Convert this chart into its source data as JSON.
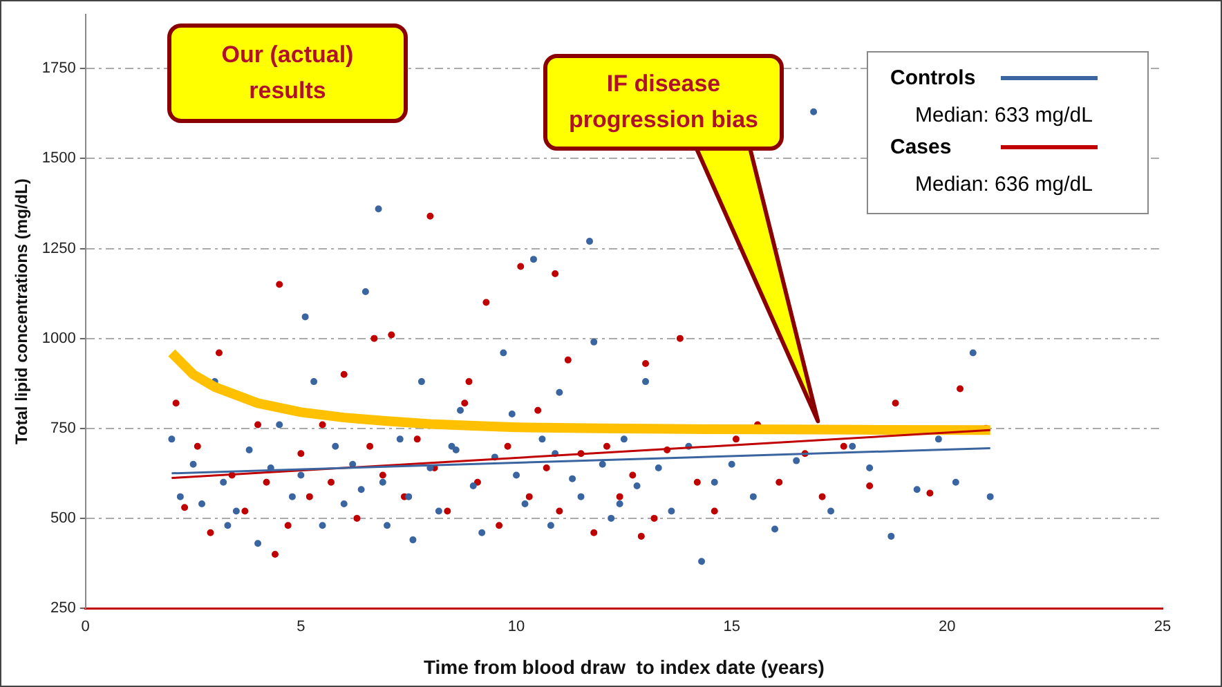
{
  "chart_data": {
    "type": "scatter",
    "xlabel": "Time from blood draw  to index date (years)",
    "ylabel": "Total lipid concentrations (mg/dL)",
    "xlim": [
      0,
      25
    ],
    "xticks": [
      0,
      5,
      10,
      15,
      20,
      25
    ],
    "ylim": [
      250,
      1900
    ],
    "yticks": [
      250,
      500,
      750,
      1000,
      1250,
      1500,
      1750
    ],
    "grid": "y",
    "legend": "top right",
    "marker": "circle",
    "series": [
      {
        "color": "#3a65a0",
        "x": [
          2.0,
          2.2,
          2.5,
          2.7,
          3.0,
          3.2,
          3.5,
          3.8,
          4.0,
          4.3,
          4.5,
          4.8,
          5.0,
          5.3,
          5.5,
          5.8,
          6.0,
          6.2,
          6.5,
          6.8,
          6.9,
          7.0,
          7.3,
          7.5,
          7.8,
          8.0,
          8.2,
          8.5,
          8.7,
          9.0,
          9.2,
          9.5,
          9.7,
          10.0,
          10.2,
          10.4,
          10.6,
          10.8,
          11.0,
          11.3,
          11.5,
          11.8,
          12.0,
          12.2,
          12.5,
          12.8,
          13.0,
          13.3,
          13.6,
          14.0,
          14.3,
          14.6,
          15.0,
          15.5,
          16.0,
          16.5,
          16.9,
          17.3,
          17.8,
          18.2,
          18.7,
          19.3,
          19.8,
          20.2,
          20.6,
          21.0,
          3.3,
          5.1,
          7.6,
          9.9,
          11.7,
          8.6,
          6.4,
          10.9,
          12.4
        ],
        "values": [
          720,
          560,
          650,
          540,
          880,
          600,
          520,
          690,
          430,
          640,
          760,
          560,
          620,
          880,
          480,
          700,
          540,
          650,
          1130,
          1360,
          600,
          480,
          720,
          560,
          880,
          640,
          520,
          700,
          800,
          590,
          460,
          670,
          960,
          620,
          540,
          1220,
          720,
          480,
          850,
          610,
          560,
          990,
          650,
          500,
          720,
          590,
          880,
          640,
          520,
          700,
          380,
          600,
          650,
          560,
          470,
          660,
          1630,
          520,
          700,
          640,
          450,
          580,
          720,
          600,
          960,
          560,
          480,
          1060,
          440,
          790,
          1270,
          690,
          580,
          680,
          540
        ]
      },
      {
        "color": "#c00000",
        "x": [
          2.1,
          2.3,
          2.6,
          2.9,
          3.1,
          3.4,
          3.7,
          4.0,
          4.2,
          4.5,
          4.7,
          5.0,
          5.2,
          5.5,
          5.7,
          6.0,
          6.3,
          6.6,
          6.9,
          7.1,
          7.4,
          7.7,
          8.0,
          8.1,
          8.4,
          8.8,
          9.1,
          9.3,
          9.6,
          9.8,
          10.1,
          10.3,
          10.5,
          10.7,
          11.0,
          11.2,
          11.5,
          11.8,
          12.1,
          12.4,
          12.7,
          13.0,
          13.2,
          13.5,
          13.8,
          14.2,
          14.6,
          15.1,
          15.6,
          16.1,
          16.7,
          17.1,
          17.6,
          18.2,
          18.8,
          19.6,
          20.3,
          20.9,
          4.4,
          6.7,
          8.9,
          10.9,
          12.9
        ],
        "values": [
          820,
          530,
          700,
          460,
          960,
          620,
          520,
          760,
          600,
          1150,
          480,
          680,
          560,
          760,
          600,
          900,
          500,
          700,
          620,
          1010,
          560,
          720,
          1340,
          640,
          520,
          820,
          600,
          1100,
          480,
          700,
          1200,
          560,
          800,
          640,
          520,
          940,
          680,
          460,
          700,
          560,
          620,
          930,
          500,
          690,
          1000,
          600,
          520,
          720,
          760,
          600,
          680,
          560,
          700,
          590,
          820,
          570,
          860,
          750,
          400,
          1000,
          880,
          1180,
          450
        ]
      },
      {
        "type": "line",
        "marker": "none",
        "name": "Controls",
        "color": "#3a65a0",
        "x": [
          2,
          21
        ],
        "values": [
          625,
          695
        ]
      },
      {
        "type": "line",
        "marker": "none",
        "name": "Cases",
        "color": "#c00000",
        "x": [
          2,
          21
        ],
        "values": [
          612,
          745
        ]
      },
      {
        "type": "line",
        "marker": "none",
        "color": "#ffc000",
        "x": [
          2,
          2.5,
          3,
          4,
          5,
          6,
          7,
          8,
          9,
          10,
          12,
          14,
          16,
          18,
          21
        ],
        "values": [
          960,
          900,
          865,
          820,
          795,
          780,
          770,
          762,
          757,
          753,
          750,
          748,
          747,
          746,
          745
        ]
      }
    ],
    "annotations": [
      "Our (actual) results",
      {
        "text": "IF disease progression bias",
        "x": 17,
        "y": 770
      },
      "Median:  633 mg/dL",
      "Median:  636 mg/dL"
    ]
  }
}
